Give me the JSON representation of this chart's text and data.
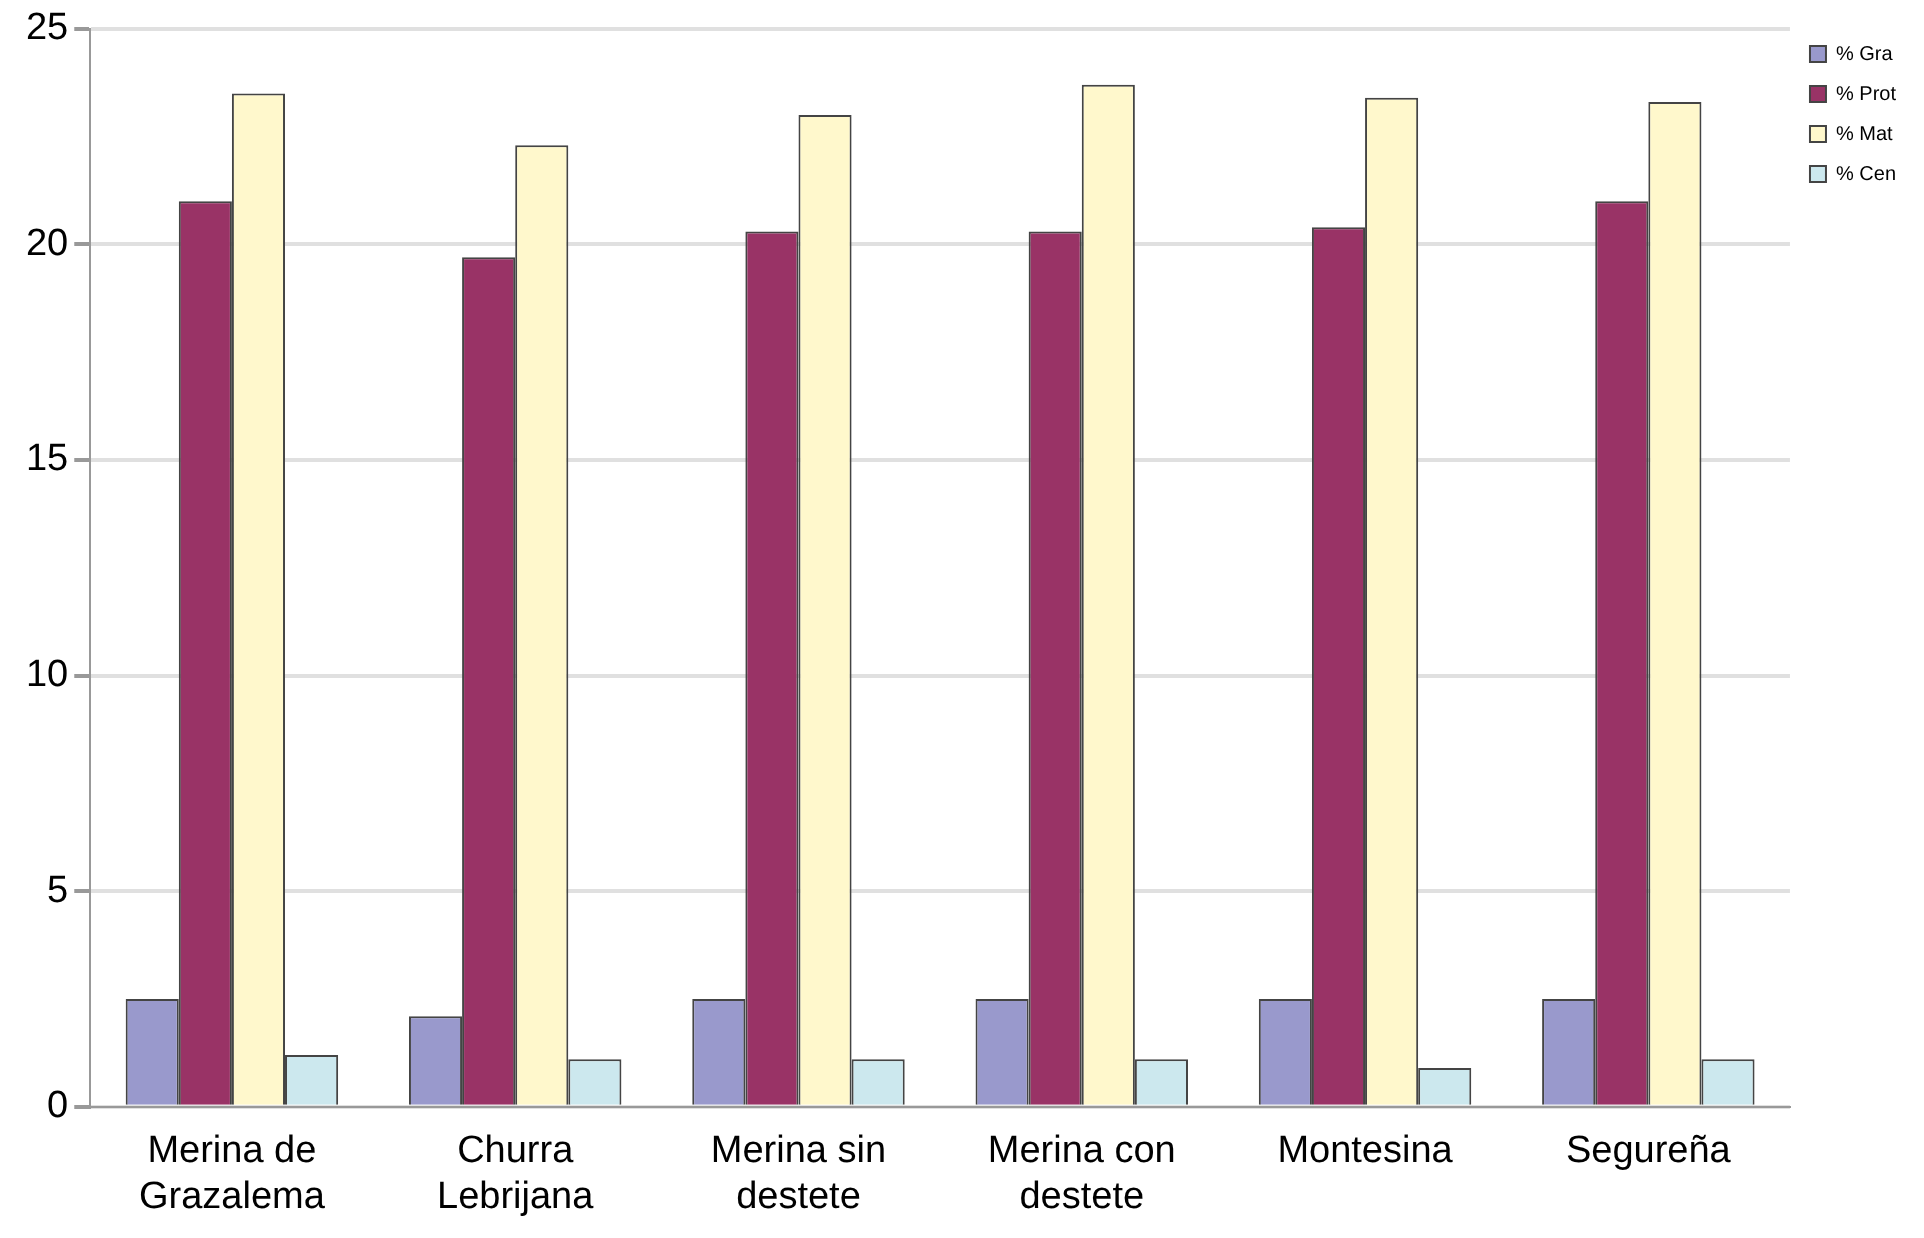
{
  "chart_data": {
    "type": "bar",
    "categories": [
      "Merina de Grazalema",
      "Churra Lebrijana",
      "Merina sin destete",
      "Merina con destete",
      "Montesina",
      "Segureña"
    ],
    "series": [
      {
        "name": "% Gra",
        "color": "#9999cc",
        "values": [
          2.5,
          2.1,
          2.5,
          2.5,
          2.5,
          2.5
        ]
      },
      {
        "name": "% Prot",
        "color": "#993366",
        "values": [
          21.0,
          19.7,
          20.3,
          20.3,
          20.4,
          21.0
        ]
      },
      {
        "name": "% Mat",
        "color": "#fff8cc",
        "values": [
          23.5,
          22.3,
          23.0,
          23.7,
          23.4,
          23.3
        ]
      },
      {
        "name": "% Cen",
        "color": "#cce8ee",
        "values": [
          1.2,
          1.1,
          1.1,
          1.1,
          0.9,
          1.1
        ]
      }
    ],
    "ylim": [
      0,
      25
    ],
    "yticks": [
      0,
      5,
      10,
      15,
      20,
      25
    ],
    "grid": "y",
    "legend": "top right"
  }
}
